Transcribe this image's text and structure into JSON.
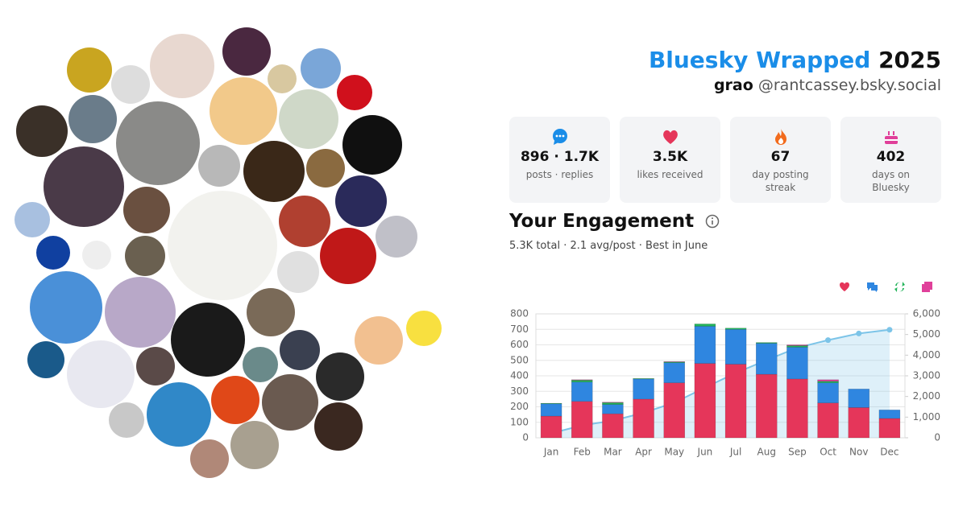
{
  "header": {
    "title": "Bluesky Wrapped",
    "year": "2025",
    "display_name": "grao",
    "handle": "@rantcassey.bsky.social"
  },
  "stats": [
    {
      "value": "896 · 1.7K",
      "label": "posts · replies"
    },
    {
      "value": "3.5K",
      "label": "likes received"
    },
    {
      "value": "67",
      "label": "day posting streak"
    },
    {
      "value": "402",
      "label": "days on Bluesky"
    }
  ],
  "engagement": {
    "title": "Your Engagement",
    "summary": "5.3K total · 2.1 avg/post · Best in June"
  },
  "chart_data": {
    "type": "bar",
    "stacked": true,
    "categories": [
      "Jan",
      "Feb",
      "Mar",
      "Apr",
      "May",
      "Jun",
      "Jul",
      "Aug",
      "Sep",
      "Oct",
      "Nov",
      "Dec"
    ],
    "series": [
      {
        "color": "#e5365a",
        "values": [
          140,
          235,
          155,
          250,
          355,
          480,
          475,
          410,
          380,
          225,
          195,
          125
        ]
      },
      {
        "color": "#2f86e0",
        "values": [
          80,
          125,
          60,
          130,
          130,
          240,
          225,
          200,
          205,
          130,
          120,
          55
        ]
      },
      {
        "color": "#22b45a",
        "values": [
          3,
          12,
          12,
          3,
          5,
          15,
          8,
          5,
          10,
          10,
          0,
          0
        ]
      },
      {
        "color": "#e0409a",
        "values": [
          0,
          3,
          3,
          0,
          2,
          0,
          0,
          0,
          5,
          10,
          0,
          0
        ]
      },
      {
        "type": "line",
        "axis": "y2",
        "color": "#7cc4e8",
        "values": [
          220,
          600,
          830,
          1210,
          1700,
          2430,
          3140,
          3760,
          4360,
          4730,
          5050,
          5230
        ]
      }
    ],
    "ylim": [
      0,
      800
    ],
    "yticks": [
      0,
      100,
      200,
      300,
      400,
      500,
      600,
      700,
      800
    ],
    "y2lim": [
      0,
      6000
    ],
    "y2ticks": [
      0,
      {
        "value": 1000,
        "label": "1,000"
      },
      {
        "value": 2000,
        "label": "2,000"
      },
      {
        "value": 3000,
        "label": "3,000"
      },
      {
        "value": 4000,
        "label": "4,000"
      },
      {
        "value": 5000,
        "label": "5,000"
      },
      {
        "value": 6000,
        "label": "6,000"
      }
    ],
    "grid": true
  }
}
